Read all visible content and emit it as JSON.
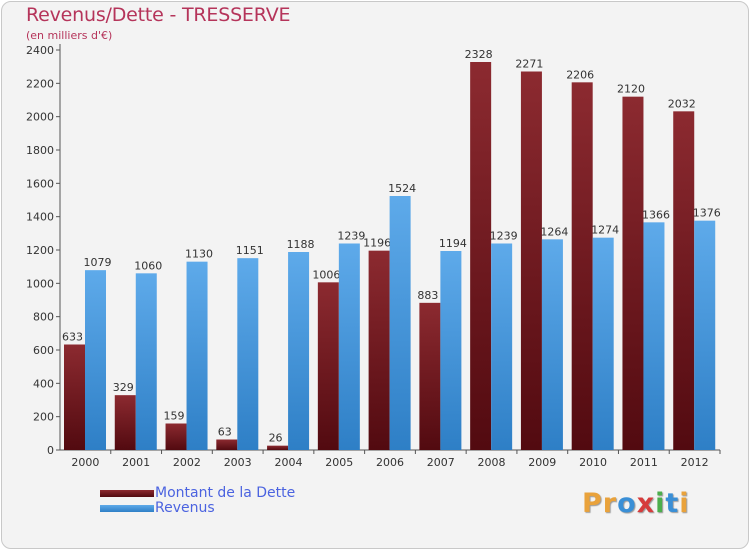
{
  "chart_data": {
    "type": "bar",
    "title": "Revenus/Dette - TRESSERVE",
    "subtitle": "(en milliers d'€)",
    "categories": [
      "2000",
      "2001",
      "2002",
      "2003",
      "2004",
      "2005",
      "2006",
      "2007",
      "2008",
      "2009",
      "2010",
      "2011",
      "2012"
    ],
    "series": [
      {
        "name": "Montant de la Dette",
        "color": "#7a1d24",
        "values": [
          633,
          329,
          159,
          63,
          26,
          1006,
          1196,
          883,
          2328,
          2271,
          2206,
          2120,
          2032
        ]
      },
      {
        "name": "Revenus",
        "color": "#4a9be0",
        "values": [
          1079,
          1060,
          1130,
          1151,
          1188,
          1239,
          1524,
          1194,
          1239,
          1264,
          1274,
          1366,
          1376
        ]
      }
    ],
    "ylim": [
      0,
      2400
    ],
    "yticks": [
      0,
      200,
      400,
      600,
      800,
      1000,
      1200,
      1400,
      1600,
      1800,
      2000,
      2200,
      2400
    ],
    "grid": false,
    "legend": "bottom-left"
  },
  "branding": {
    "logo_letters": [
      "P",
      "r",
      "o",
      "x",
      "i",
      "t",
      "i"
    ],
    "logo_colors": [
      "#e9a23b",
      "#e9a23b",
      "#3a8fd6",
      "#d63c3c",
      "#4cae4c",
      "#3a8fd6",
      "#e9a23b"
    ]
  }
}
